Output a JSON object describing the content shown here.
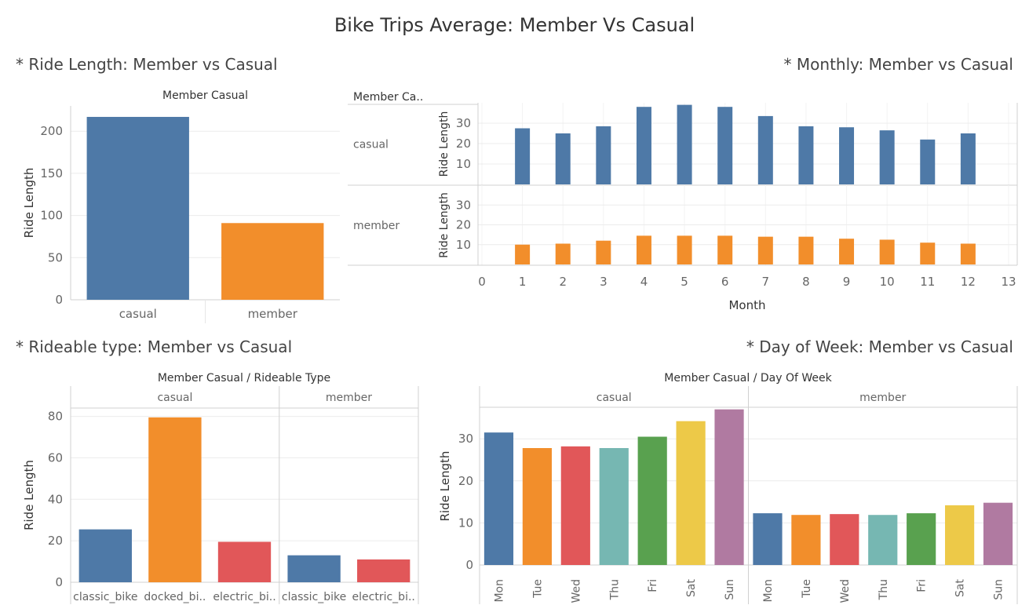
{
  "title": "Bike Trips Average: Member Vs Casual",
  "colors": {
    "casual": "#4e79a7",
    "member": "#f28e2b",
    "classic_bike": "#4e79a7",
    "docked_bike": "#f28e2b",
    "electric_bike": "#e15759",
    "Mon": "#4e79a7",
    "Tue": "#f28e2b",
    "Wed": "#e15759",
    "Thu": "#76b7b2",
    "Fri": "#59a14f",
    "Sat": "#edc948",
    "Sun": "#b07aa1"
  },
  "sections": {
    "ride_length": "* Ride Length: Member vs Casual",
    "monthly": "* Monthly: Member vs Casual",
    "rideable": "* Rideable type: Member vs Casual",
    "dow": "* Day of Week: Member vs Casual"
  },
  "chart_data": [
    {
      "id": "ride_length",
      "type": "bar",
      "header": "Member Casual",
      "ylabel": "Ride Length",
      "ylim": [
        0,
        230
      ],
      "yticks": [
        0,
        50,
        100,
        150,
        200
      ],
      "categories": [
        "casual",
        "member"
      ],
      "values": [
        217,
        91
      ],
      "grid": true
    },
    {
      "id": "monthly",
      "type": "bar",
      "row_header": "Member Ca..",
      "xlabel": "Month",
      "ylabel": "Ride Length",
      "xlim": [
        0,
        13
      ],
      "xticks": [
        0,
        1,
        2,
        3,
        4,
        5,
        6,
        7,
        8,
        9,
        10,
        11,
        12,
        13
      ],
      "yticks": [
        10,
        20,
        30
      ],
      "ylim": [
        0,
        40
      ],
      "x": [
        1,
        2,
        3,
        4,
        5,
        6,
        7,
        8,
        9,
        10,
        11,
        12
      ],
      "series": [
        {
          "name": "casual",
          "values": [
            27.5,
            25,
            28.5,
            38,
            39,
            38,
            33.5,
            28.5,
            28,
            26.5,
            22,
            25
          ]
        },
        {
          "name": "member",
          "values": [
            10,
            10.5,
            12,
            14.5,
            14.5,
            14.5,
            14,
            14,
            13,
            12.5,
            11,
            10.5
          ]
        }
      ],
      "grid": true
    },
    {
      "id": "rideable",
      "type": "bar",
      "header": "Member Casual  /  Rideable Type",
      "ylabel": "Ride Length",
      "ylim": [
        0,
        84
      ],
      "yticks": [
        0,
        20,
        40,
        60,
        80
      ],
      "panels": [
        {
          "name": "casual",
          "categories": [
            "classic_bike",
            "docked_bi..",
            "electric_bi.."
          ],
          "keys": [
            "classic_bike",
            "docked_bike",
            "electric_bike"
          ],
          "values": [
            25.5,
            79.5,
            19.5
          ]
        },
        {
          "name": "member",
          "categories": [
            "classic_bike",
            "electric_bi.."
          ],
          "keys": [
            "classic_bike",
            "electric_bike"
          ],
          "values": [
            13,
            11
          ]
        }
      ],
      "grid": true
    },
    {
      "id": "dow",
      "type": "bar",
      "header": "Member Casual  /  Day Of Week",
      "ylabel": "Ride Length",
      "ylim": [
        0,
        37.5
      ],
      "yticks": [
        0,
        10,
        20,
        30
      ],
      "categories": [
        "Mon",
        "Tue",
        "Wed",
        "Thu",
        "Fri",
        "Sat",
        "Sun"
      ],
      "panels": [
        {
          "name": "casual",
          "values": [
            31.5,
            27.8,
            28.2,
            27.8,
            30.5,
            34.2,
            37
          ]
        },
        {
          "name": "member",
          "values": [
            12.3,
            11.9,
            12.1,
            11.9,
            12.3,
            14.2,
            14.8
          ]
        }
      ],
      "grid": true
    }
  ]
}
